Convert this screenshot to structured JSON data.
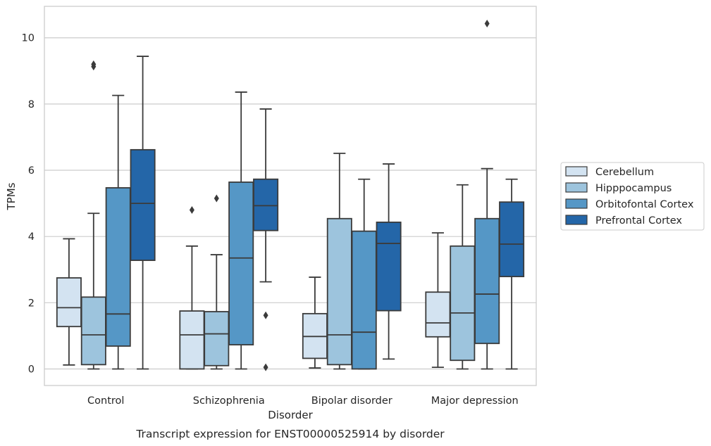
{
  "chart_data": {
    "type": "box",
    "xlabel": "Disorder",
    "ylabel": "TPMs",
    "caption": "Transcript expression for ENST00000525914 by disorder",
    "ylim": [
      -0.5,
      10.95
    ],
    "yticks": [
      0,
      2,
      4,
      6,
      8,
      10
    ],
    "grid": "horizontal",
    "legend_position": "right",
    "categories": [
      "Control",
      "Schizophrenia",
      "Bipolar disorder",
      "Major depression"
    ],
    "series": [
      {
        "name": "Cerebellum",
        "color": "#d3e3f1",
        "boxes": [
          {
            "whislo": 0.12,
            "q1": 1.28,
            "med": 1.85,
            "q3": 2.75,
            "whishi": 3.93,
            "fliers": []
          },
          {
            "whislo": 0.0,
            "q1": 0.0,
            "med": 1.03,
            "q3": 1.75,
            "whishi": 3.71,
            "fliers": [
              4.8
            ]
          },
          {
            "whislo": 0.03,
            "q1": 0.32,
            "med": 0.98,
            "q3": 1.67,
            "whishi": 2.77,
            "fliers": []
          },
          {
            "whislo": 0.05,
            "q1": 0.97,
            "med": 1.39,
            "q3": 2.32,
            "whishi": 4.11,
            "fliers": []
          }
        ]
      },
      {
        "name": "Hipppocampus",
        "color": "#9dc4dd",
        "boxes": [
          {
            "whislo": 0.0,
            "q1": 0.13,
            "med": 1.03,
            "q3": 2.17,
            "whishi": 4.7,
            "fliers": [
              9.13,
              9.2
            ]
          },
          {
            "whislo": 0.0,
            "q1": 0.1,
            "med": 1.06,
            "q3": 1.73,
            "whishi": 3.45,
            "fliers": [
              5.15
            ]
          },
          {
            "whislo": 0.0,
            "q1": 0.13,
            "med": 1.03,
            "q3": 4.54,
            "whishi": 6.51,
            "fliers": []
          },
          {
            "whislo": 0.0,
            "q1": 0.26,
            "med": 1.69,
            "q3": 3.71,
            "whishi": 5.56,
            "fliers": []
          }
        ]
      },
      {
        "name": "Orbitofontal Cortex",
        "color": "#5597c6",
        "boxes": [
          {
            "whislo": 0.0,
            "q1": 0.69,
            "med": 1.66,
            "q3": 5.47,
            "whishi": 8.26,
            "fliers": []
          },
          {
            "whislo": 0.0,
            "q1": 0.73,
            "med": 3.35,
            "q3": 5.64,
            "whishi": 8.36,
            "fliers": []
          },
          {
            "whislo": 0.0,
            "q1": 0.0,
            "med": 1.11,
            "q3": 4.16,
            "whishi": 5.73,
            "fliers": []
          },
          {
            "whislo": 0.0,
            "q1": 0.77,
            "med": 2.26,
            "q3": 4.54,
            "whishi": 6.05,
            "fliers": [
              10.43
            ]
          }
        ]
      },
      {
        "name": "Prefrontal Cortex",
        "color": "#2466a8",
        "boxes": [
          {
            "whislo": 0.0,
            "q1": 3.28,
            "med": 5.0,
            "q3": 6.62,
            "whishi": 9.44,
            "fliers": []
          },
          {
            "whislo": 2.63,
            "q1": 4.18,
            "med": 4.93,
            "q3": 5.73,
            "whishi": 7.85,
            "fliers": [
              1.62,
              0.05
            ]
          },
          {
            "whislo": 0.3,
            "q1": 1.76,
            "med": 3.79,
            "q3": 4.43,
            "whishi": 6.19,
            "fliers": []
          },
          {
            "whislo": 0.0,
            "q1": 2.79,
            "med": 3.77,
            "q3": 5.04,
            "whishi": 5.73,
            "fliers": []
          }
        ]
      }
    ]
  }
}
